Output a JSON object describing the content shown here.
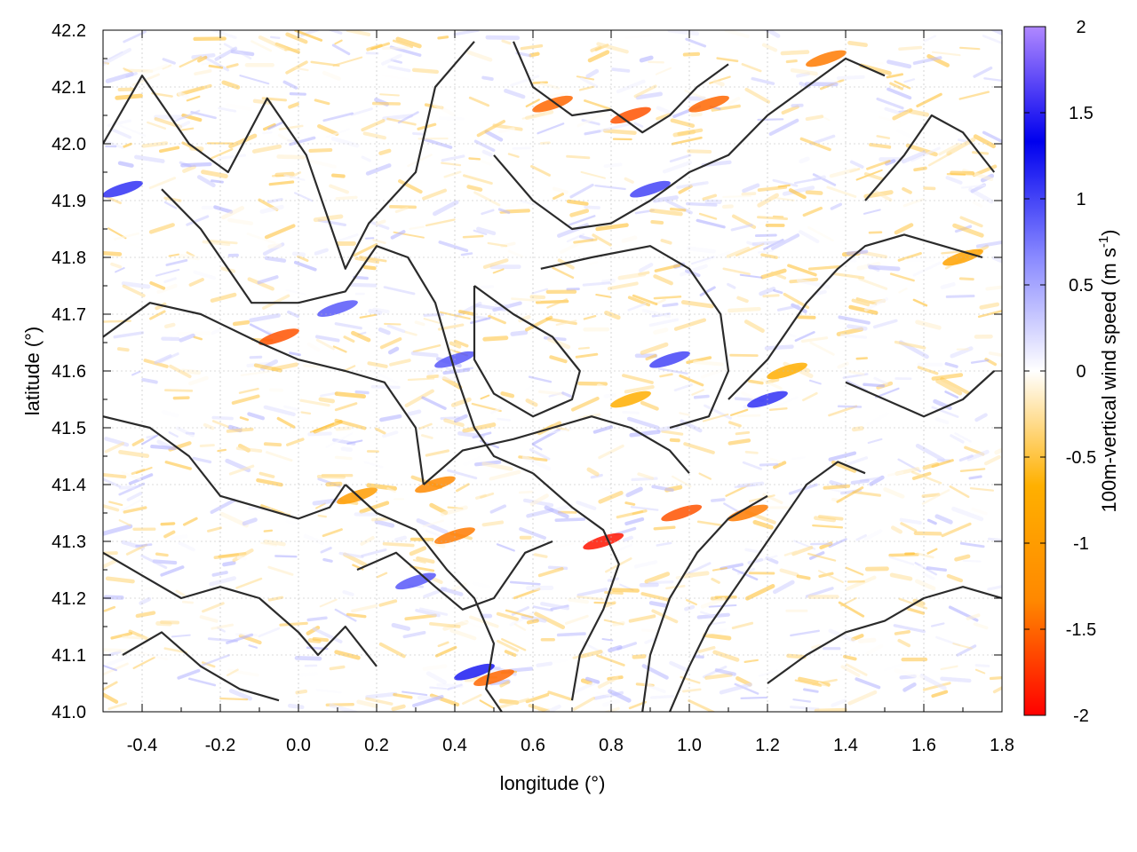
{
  "chart_data": {
    "type": "heatmap",
    "xlabel": "longitude (°)",
    "ylabel": "latitude (°)",
    "colorbar_label": "100m-vertical wind speed (m s",
    "colorbar_label_sup": "-1",
    "colorbar_label_end": ")",
    "xlim": [
      -0.5,
      1.8
    ],
    "ylim": [
      41.0,
      42.2
    ],
    "clim": [
      -2,
      2
    ],
    "x_ticks": [
      "-0.4",
      "-0.2",
      "0.0",
      "0.2",
      "0.4",
      "0.6",
      "0.8",
      "1.0",
      "1.2",
      "1.4",
      "1.6",
      "1.8"
    ],
    "x_tick_values": [
      -0.4,
      -0.2,
      0.0,
      0.2,
      0.4,
      0.6,
      0.8,
      1.0,
      1.2,
      1.4,
      1.6,
      1.8
    ],
    "y_ticks": [
      "41.0",
      "41.1",
      "41.2",
      "41.3",
      "41.4",
      "41.5",
      "41.6",
      "41.7",
      "41.8",
      "41.9",
      "42.0",
      "42.1",
      "42.2"
    ],
    "y_tick_values": [
      41.0,
      41.1,
      41.2,
      41.3,
      41.4,
      41.5,
      41.6,
      41.7,
      41.8,
      41.9,
      42.0,
      42.1,
      42.2
    ],
    "colorbar_ticks": [
      "2",
      "1.5",
      "1",
      "0.5",
      "0",
      "-0.5",
      "-1",
      "-1.5",
      "-2"
    ],
    "colorbar_tick_values": [
      2,
      1.5,
      1,
      0.5,
      0,
      -0.5,
      -1,
      -1.5,
      -2
    ],
    "colormap": [
      "#ff0000",
      "#ff8800",
      "#ffb000",
      "#ffffff",
      "#8888ff",
      "#0000ee",
      "#b088ff"
    ],
    "grid": true,
    "contour_color": "#2b2b2b",
    "hotspots": [
      {
        "lon": 0.78,
        "lat": 41.3,
        "w": -1.9
      },
      {
        "lon": 0.98,
        "lat": 41.35,
        "w": -1.6
      },
      {
        "lon": 1.15,
        "lat": 41.35,
        "w": -1.4
      },
      {
        "lon": -0.05,
        "lat": 41.66,
        "w": -1.6
      },
      {
        "lon": 0.35,
        "lat": 41.4,
        "w": -1.3
      },
      {
        "lon": 0.4,
        "lat": 41.31,
        "w": -1.4
      },
      {
        "lon": 0.5,
        "lat": 41.06,
        "w": -1.5
      },
      {
        "lon": 0.65,
        "lat": 42.07,
        "w": -1.5
      },
      {
        "lon": 0.85,
        "lat": 42.05,
        "w": -1.6
      },
      {
        "lon": 1.05,
        "lat": 42.07,
        "w": -1.5
      },
      {
        "lon": 1.35,
        "lat": 42.15,
        "w": -1.4
      },
      {
        "lon": 0.15,
        "lat": 41.38,
        "w": -1.0
      },
      {
        "lon": 0.85,
        "lat": 41.55,
        "w": -0.7
      },
      {
        "lon": 1.25,
        "lat": 41.6,
        "w": -0.7
      },
      {
        "lon": 1.7,
        "lat": 41.8,
        "w": -0.9
      },
      {
        "lon": 0.95,
        "lat": 41.62,
        "w": 1.0
      },
      {
        "lon": 0.4,
        "lat": 41.62,
        "w": 0.9
      },
      {
        "lon": 0.1,
        "lat": 41.71,
        "w": 0.9
      },
      {
        "lon": -0.45,
        "lat": 41.92,
        "w": 1.1
      },
      {
        "lon": 0.45,
        "lat": 41.07,
        "w": 1.2
      },
      {
        "lon": 0.9,
        "lat": 41.92,
        "w": 1.0
      },
      {
        "lon": 1.2,
        "lat": 41.55,
        "w": 1.1
      },
      {
        "lon": 0.3,
        "lat": 41.23,
        "w": 0.9
      }
    ],
    "contours": [
      [
        [
          -0.5,
          42.0
        ],
        [
          -0.4,
          42.12
        ],
        [
          -0.28,
          42.0
        ],
        [
          -0.18,
          41.95
        ],
        [
          -0.08,
          42.08
        ],
        [
          0.02,
          41.98
        ],
        [
          0.12,
          41.78
        ],
        [
          0.18,
          41.86
        ],
        [
          0.3,
          41.95
        ],
        [
          0.35,
          42.1
        ],
        [
          0.45,
          42.18
        ]
      ],
      [
        [
          -0.35,
          41.92
        ],
        [
          -0.25,
          41.85
        ],
        [
          -0.12,
          41.72
        ],
        [
          0.0,
          41.72
        ],
        [
          0.12,
          41.74
        ],
        [
          0.2,
          41.82
        ],
        [
          0.28,
          41.8
        ],
        [
          0.35,
          41.72
        ],
        [
          0.4,
          41.6
        ],
        [
          0.45,
          41.5
        ],
        [
          0.5,
          41.45
        ],
        [
          0.6,
          41.42
        ]
      ],
      [
        [
          -0.5,
          41.66
        ],
        [
          -0.38,
          41.72
        ],
        [
          -0.25,
          41.7
        ],
        [
          -0.1,
          41.65
        ],
        [
          0.0,
          41.62
        ],
        [
          0.12,
          41.6
        ],
        [
          0.22,
          41.58
        ],
        [
          0.3,
          41.5
        ],
        [
          0.32,
          41.4
        ]
      ],
      [
        [
          -0.5,
          41.52
        ],
        [
          -0.38,
          41.5
        ],
        [
          -0.28,
          41.45
        ],
        [
          -0.2,
          41.38
        ],
        [
          -0.1,
          41.36
        ],
        [
          0.0,
          41.34
        ],
        [
          0.08,
          41.36
        ],
        [
          0.12,
          41.4
        ]
      ],
      [
        [
          -0.5,
          41.28
        ],
        [
          -0.4,
          41.24
        ],
        [
          -0.3,
          41.2
        ],
        [
          -0.2,
          41.22
        ],
        [
          -0.1,
          41.2
        ],
        [
          0.0,
          41.14
        ],
        [
          0.05,
          41.1
        ],
        [
          0.12,
          41.15
        ],
        [
          0.2,
          41.08
        ]
      ],
      [
        [
          -0.45,
          41.1
        ],
        [
          -0.35,
          41.14
        ],
        [
          -0.25,
          41.08
        ],
        [
          -0.15,
          41.04
        ],
        [
          -0.05,
          41.02
        ]
      ],
      [
        [
          0.12,
          41.4
        ],
        [
          0.2,
          41.35
        ],
        [
          0.3,
          41.32
        ],
        [
          0.38,
          41.25
        ],
        [
          0.45,
          41.2
        ],
        [
          0.5,
          41.12
        ],
        [
          0.48,
          41.04
        ],
        [
          0.52,
          41.0
        ]
      ],
      [
        [
          0.32,
          41.4
        ],
        [
          0.42,
          41.46
        ],
        [
          0.55,
          41.48
        ],
        [
          0.65,
          41.5
        ],
        [
          0.75,
          41.52
        ],
        [
          0.85,
          41.5
        ],
        [
          0.95,
          41.46
        ],
        [
          1.0,
          41.42
        ]
      ],
      [
        [
          0.6,
          41.42
        ],
        [
          0.7,
          41.36
        ],
        [
          0.78,
          41.32
        ],
        [
          0.82,
          41.26
        ],
        [
          0.78,
          41.18
        ],
        [
          0.72,
          41.1
        ],
        [
          0.7,
          41.02
        ]
      ],
      [
        [
          0.95,
          41.0
        ],
        [
          1.0,
          41.08
        ],
        [
          1.05,
          41.15
        ],
        [
          1.12,
          41.22
        ],
        [
          1.2,
          41.3
        ],
        [
          1.3,
          41.4
        ],
        [
          1.38,
          41.44
        ],
        [
          1.45,
          41.42
        ]
      ],
      [
        [
          0.88,
          41.0
        ],
        [
          0.9,
          41.1
        ],
        [
          0.95,
          41.2
        ],
        [
          1.02,
          41.28
        ],
        [
          1.1,
          41.34
        ],
        [
          1.2,
          41.38
        ]
      ],
      [
        [
          1.2,
          41.05
        ],
        [
          1.3,
          41.1
        ],
        [
          1.4,
          41.14
        ],
        [
          1.5,
          41.16
        ],
        [
          1.6,
          41.2
        ],
        [
          1.7,
          41.22
        ],
        [
          1.8,
          41.2
        ]
      ],
      [
        [
          1.1,
          41.55
        ],
        [
          1.2,
          41.62
        ],
        [
          1.3,
          41.72
        ],
        [
          1.38,
          41.78
        ],
        [
          1.45,
          41.82
        ],
        [
          1.55,
          41.84
        ],
        [
          1.65,
          41.82
        ],
        [
          1.75,
          41.8
        ]
      ],
      [
        [
          0.62,
          41.78
        ],
        [
          0.75,
          41.8
        ],
        [
          0.9,
          41.82
        ],
        [
          1.0,
          41.78
        ],
        [
          1.08,
          41.7
        ],
        [
          1.1,
          41.6
        ],
        [
          1.05,
          41.52
        ],
        [
          0.95,
          41.5
        ]
      ],
      [
        [
          0.5,
          41.98
        ],
        [
          0.6,
          41.9
        ],
        [
          0.7,
          41.85
        ],
        [
          0.8,
          41.86
        ],
        [
          0.9,
          41.9
        ],
        [
          1.0,
          41.95
        ],
        [
          1.1,
          41.98
        ],
        [
          1.2,
          42.05
        ],
        [
          1.3,
          42.1
        ],
        [
          1.4,
          42.15
        ],
        [
          1.5,
          42.12
        ]
      ],
      [
        [
          0.55,
          42.18
        ],
        [
          0.6,
          42.1
        ],
        [
          0.7,
          42.05
        ],
        [
          0.8,
          42.06
        ],
        [
          0.88,
          42.02
        ],
        [
          0.95,
          42.05
        ],
        [
          1.02,
          42.1
        ],
        [
          1.1,
          42.14
        ]
      ],
      [
        [
          1.45,
          41.9
        ],
        [
          1.55,
          41.98
        ],
        [
          1.62,
          42.05
        ],
        [
          1.7,
          42.02
        ],
        [
          1.78,
          41.95
        ]
      ],
      [
        [
          1.4,
          41.58
        ],
        [
          1.5,
          41.55
        ],
        [
          1.6,
          41.52
        ],
        [
          1.7,
          41.55
        ],
        [
          1.78,
          41.6
        ]
      ],
      [
        [
          0.45,
          41.75
        ],
        [
          0.55,
          41.7
        ],
        [
          0.65,
          41.66
        ],
        [
          0.72,
          41.6
        ],
        [
          0.7,
          41.55
        ],
        [
          0.6,
          41.52
        ],
        [
          0.5,
          41.56
        ],
        [
          0.45,
          41.62
        ],
        [
          0.45,
          41.75
        ]
      ],
      [
        [
          0.15,
          41.25
        ],
        [
          0.25,
          41.28
        ],
        [
          0.35,
          41.22
        ],
        [
          0.42,
          41.18
        ],
        [
          0.5,
          41.2
        ],
        [
          0.58,
          41.28
        ],
        [
          0.65,
          41.3
        ]
      ]
    ]
  }
}
